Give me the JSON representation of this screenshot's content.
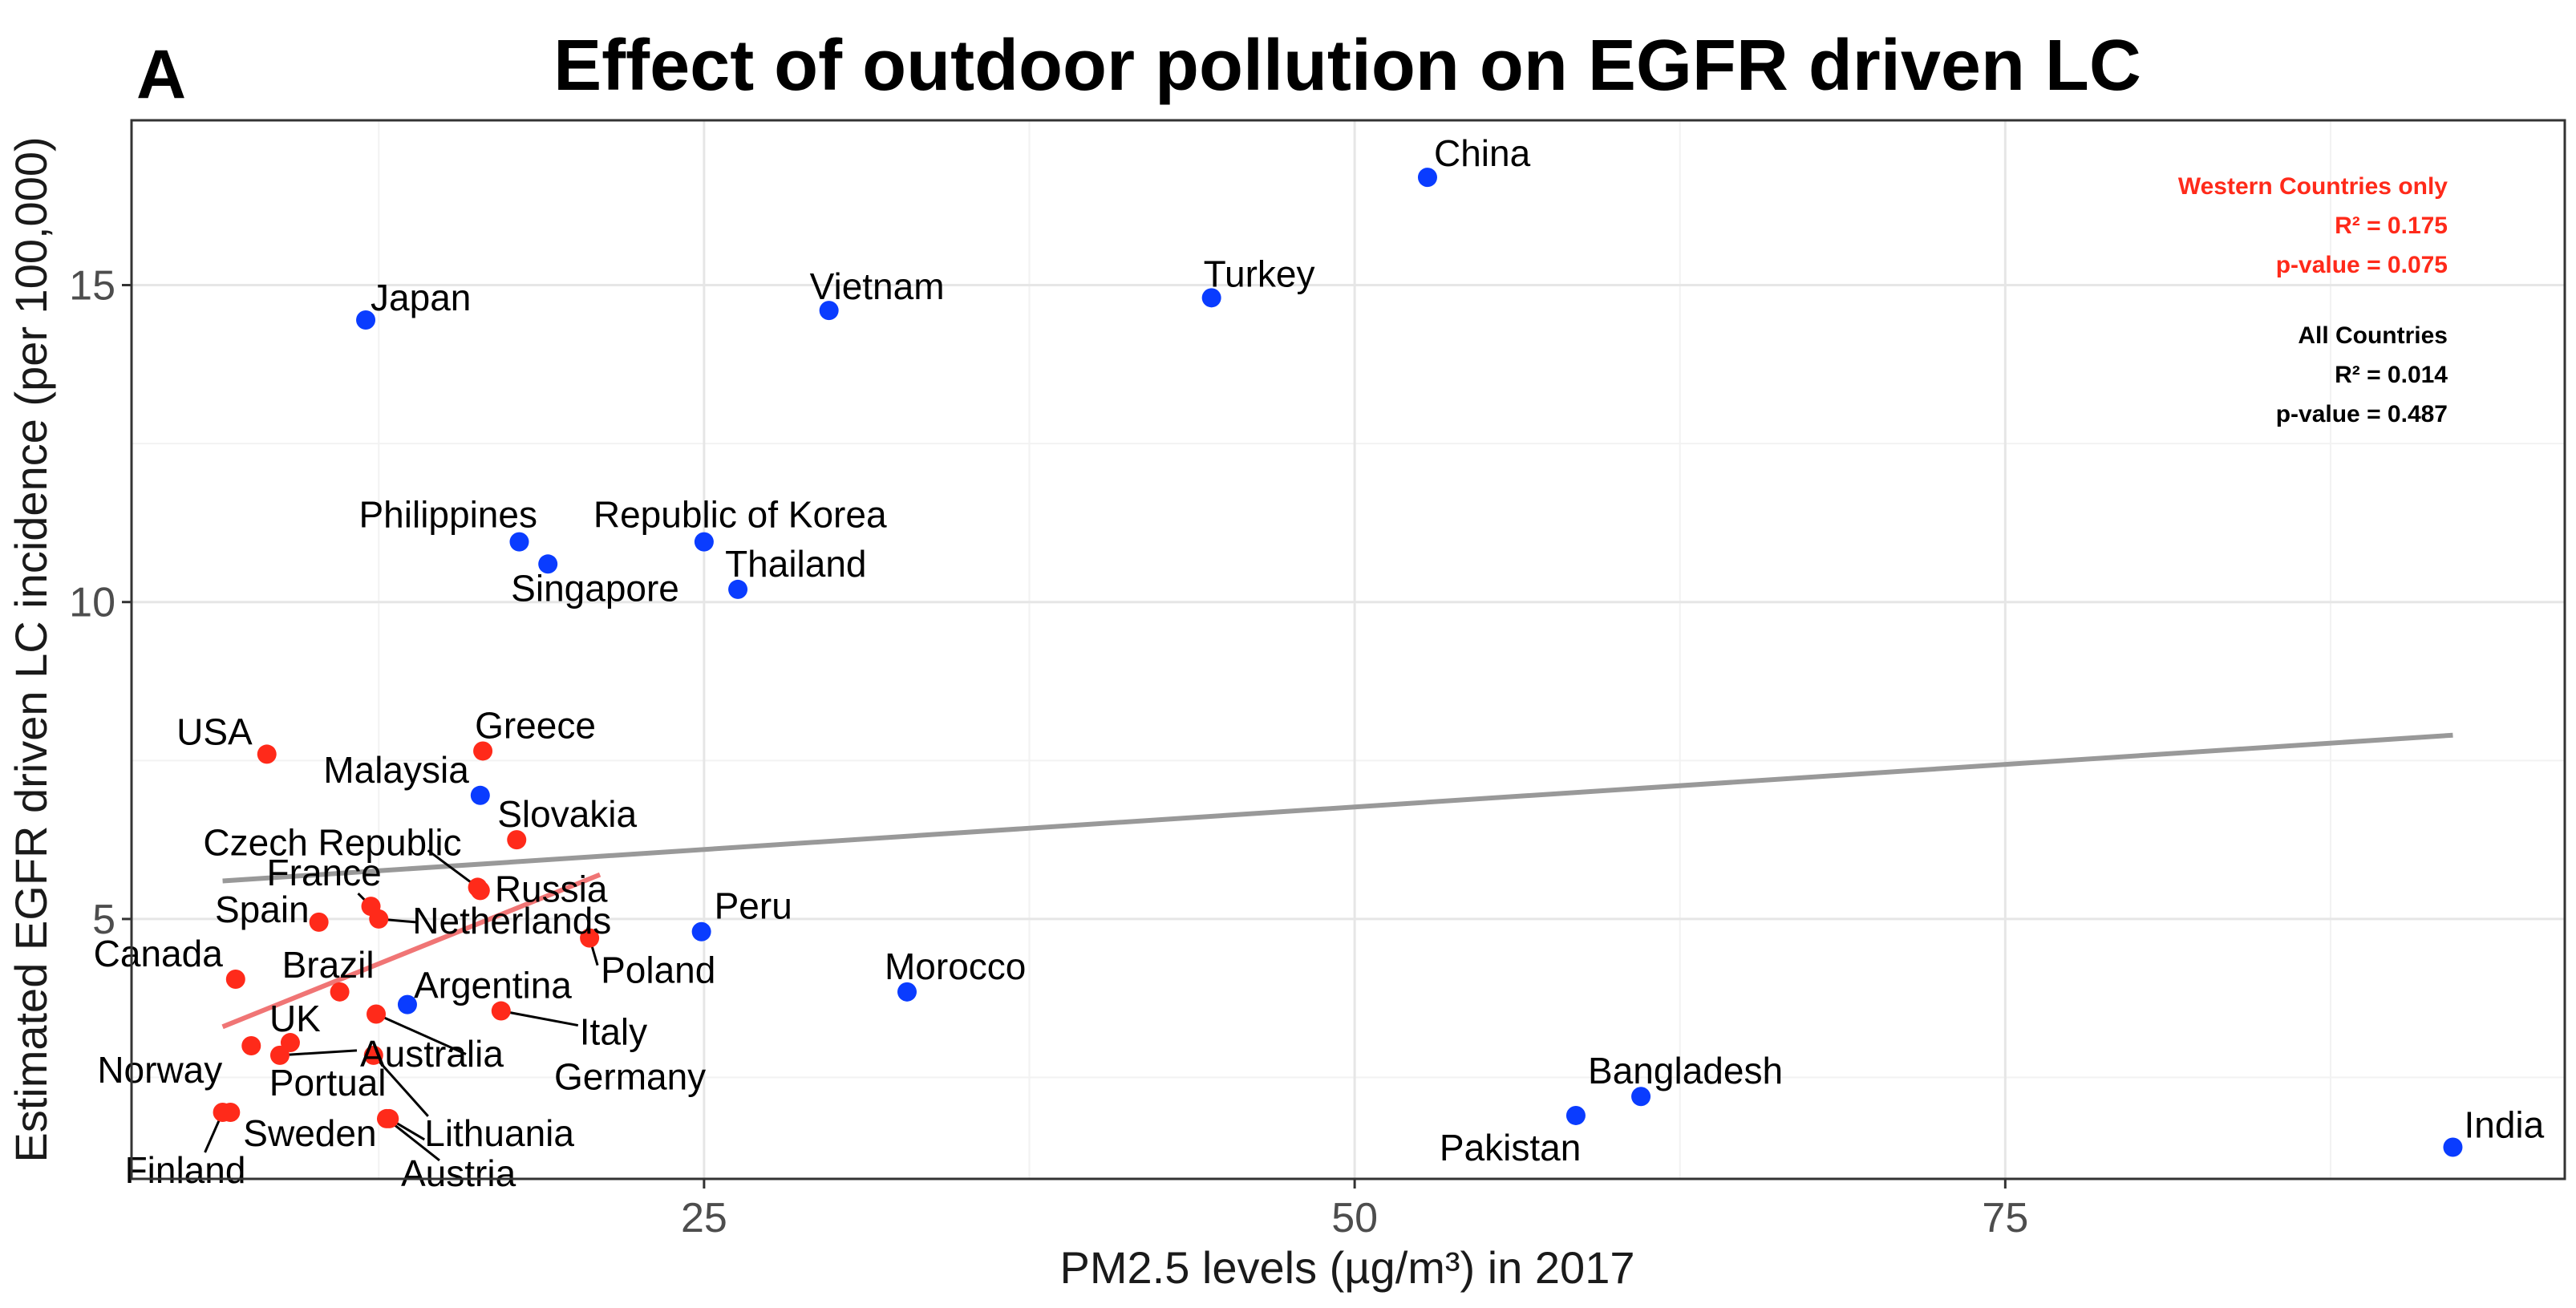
{
  "panel_label": "A",
  "colors": {
    "western": "#ff2a1a",
    "other": "#0a3cff",
    "fit_all": "#999999",
    "fit_western": "#f07575"
  },
  "chart_data": {
    "type": "scatter",
    "title": "Effect of outdoor pollution on EGFR driven LC",
    "xlabel": "PM2.5 levels (µg/m³) in 2017",
    "ylabel": "Estimated EGFR driven LC incidence (per 100,000)",
    "xlim": [
      3.0,
      96.5
    ],
    "ylim": [
      0.9,
      17.6
    ],
    "xticks": [
      25,
      50,
      75
    ],
    "yticks": [
      5,
      10,
      15
    ],
    "xminor": [
      12.5,
      37.5,
      62.5,
      87.5
    ],
    "yminor": [
      2.5,
      7.5,
      12.5
    ],
    "grid": true,
    "series": [
      {
        "group": "western",
        "points": [
          {
            "label": "USA",
            "x": 8.2,
            "y": 7.6
          },
          {
            "label": "Greece",
            "x": 16.5,
            "y": 7.65
          },
          {
            "label": "Slovakia",
            "x": 17.8,
            "y": 6.25
          },
          {
            "label": "Czech Republic",
            "x": 16.3,
            "y": 5.5
          },
          {
            "label": "Russia",
            "x": 16.4,
            "y": 5.45
          },
          {
            "label": "France",
            "x": 12.2,
            "y": 5.2
          },
          {
            "label": "Netherlands",
            "x": 12.5,
            "y": 5.0
          },
          {
            "label": "Spain",
            "x": 10.2,
            "y": 4.95
          },
          {
            "label": "Poland",
            "x": 20.6,
            "y": 4.7
          },
          {
            "label": "Canada",
            "x": 7.0,
            "y": 4.05
          },
          {
            "label": "Brazil",
            "x": 11.0,
            "y": 3.85
          },
          {
            "label": "Italy",
            "x": 17.2,
            "y": 3.55
          },
          {
            "label": "Germany",
            "x": 12.4,
            "y": 3.5
          },
          {
            "label": "UK",
            "x": 9.1,
            "y": 3.05
          },
          {
            "label": "Norway",
            "x": 7.6,
            "y": 3.0
          },
          {
            "label": "Australia",
            "x": 8.7,
            "y": 2.85
          },
          {
            "label": "Portual",
            "x": 12.3,
            "y": 2.85
          },
          {
            "label": "Lithuania",
            "x": 12.9,
            "y": 1.85
          },
          {
            "label": "Sweden",
            "x": 6.8,
            "y": 1.95
          },
          {
            "label": "Finland",
            "x": 6.5,
            "y": 1.95
          },
          {
            "label": "Austria",
            "x": 12.8,
            "y": 1.85
          }
        ]
      },
      {
        "group": "other",
        "points": [
          {
            "label": "China",
            "x": 52.8,
            "y": 16.7
          },
          {
            "label": "Turkey",
            "x": 44.5,
            "y": 14.8
          },
          {
            "label": "Vietnam",
            "x": 29.8,
            "y": 14.6
          },
          {
            "label": "Japan",
            "x": 12.0,
            "y": 14.45
          },
          {
            "label": "Philippines",
            "x": 17.9,
            "y": 10.95
          },
          {
            "label": "Republic of Korea",
            "x": 25.0,
            "y": 10.95
          },
          {
            "label": "Singapore",
            "x": 19.0,
            "y": 10.6
          },
          {
            "label": "Thailand",
            "x": 26.3,
            "y": 10.2
          },
          {
            "label": "Malaysia",
            "x": 16.4,
            "y": 6.95
          },
          {
            "label": "Argentina",
            "x": 13.6,
            "y": 3.65
          },
          {
            "label": "Peru",
            "x": 24.9,
            "y": 4.8
          },
          {
            "label": "Morocco",
            "x": 32.8,
            "y": 3.85
          },
          {
            "label": "Bangladesh",
            "x": 61.0,
            "y": 2.2
          },
          {
            "label": "Pakistan",
            "x": 58.5,
            "y": 1.9
          },
          {
            "label": "India",
            "x": 92.2,
            "y": 1.4
          }
        ]
      }
    ],
    "regression_lines": [
      {
        "name": "All Countries",
        "x": [
          6.5,
          92.2
        ],
        "y": [
          5.6,
          7.9
        ]
      },
      {
        "name": "Western Countries only",
        "x": [
          6.5,
          21.0
        ],
        "y": [
          3.3,
          5.7
        ]
      }
    ],
    "annotations": {
      "western": [
        "Western Countries only",
        "R² = 0.175",
        "p-value = 0.075"
      ],
      "all": [
        "All Countries",
        "R² = 0.014",
        "p-value = 0.487"
      ]
    }
  }
}
